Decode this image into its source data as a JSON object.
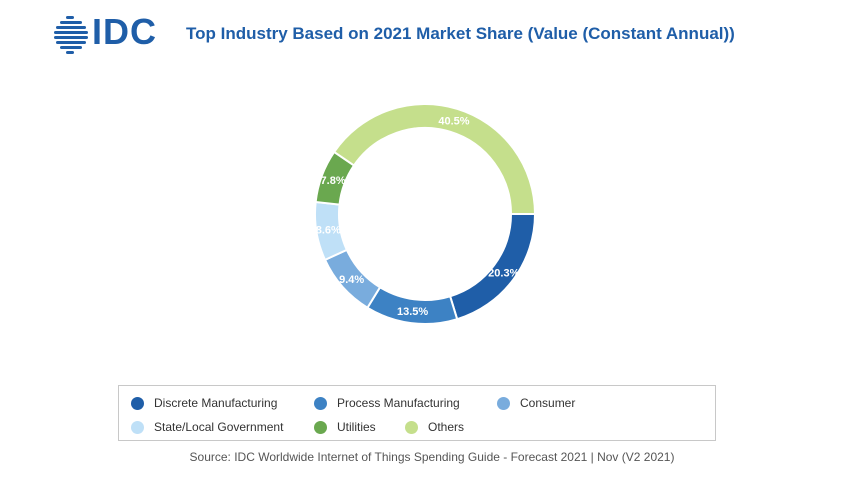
{
  "logo": {
    "text": "IDC",
    "color": "#1f5ea8"
  },
  "chart_data": {
    "type": "pie",
    "subtype": "donut",
    "title": "Top Industry Based on 2021 Market Share (Value (Constant Annual))",
    "categories": [
      "Discrete Manufacturing",
      "Process Manufacturing",
      "Consumer",
      "State/Local Government",
      "Utilities",
      "Others"
    ],
    "values": [
      20.3,
      13.5,
      9.4,
      8.6,
      7.8,
      40.5
    ],
    "labels": [
      "20.3%",
      "13.5%",
      "9.4%",
      "8.6%",
      "7.8%",
      "40.5%"
    ],
    "colors": [
      "#1f5ea8",
      "#3d82c4",
      "#79acdd",
      "#bfe0f7",
      "#6aa84f",
      "#c5df8c"
    ],
    "start": "3 o'clock",
    "direction": "clockwise",
    "legend_position": "bottom"
  },
  "source": "Source: IDC Worldwide Internet of Things Spending Guide - Forecast 2021 | Nov (V2 2021)"
}
